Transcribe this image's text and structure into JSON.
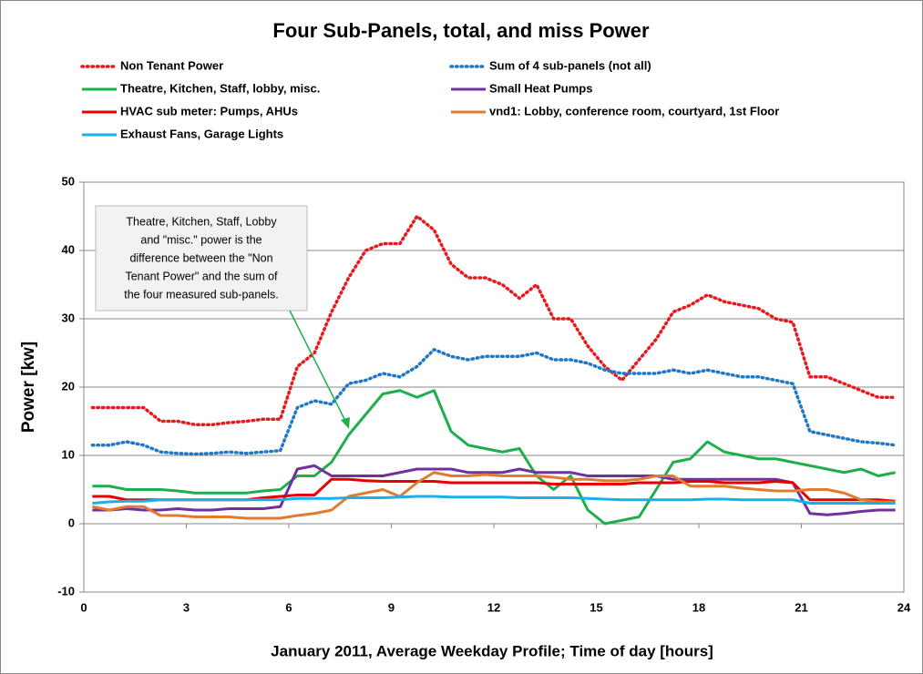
{
  "chart_data": {
    "type": "line",
    "title": "Four Sub-Panels, total, and miss Power",
    "xlabel": "January 2011, Average Weekday Profile;  Time of day [hours]",
    "ylabel": "Power [kw]",
    "annotation": [
      "Theatre, Kitchen, Staff, Lobby",
      "and \"misc.\" power is the",
      "difference between the \"Non",
      "Tenant Power\" and the sum of",
      "the four measured sub-panels."
    ],
    "xlim": [
      0,
      24
    ],
    "xticks": [
      0,
      3,
      6,
      9,
      12,
      15,
      18,
      21,
      24
    ],
    "ylim": [
      -10,
      50
    ],
    "yticks": [
      -10,
      0,
      10,
      20,
      30,
      40,
      50
    ],
    "grid": true,
    "x": [
      0.25,
      0.75,
      1.25,
      1.75,
      2.25,
      2.75,
      3.25,
      3.75,
      4.25,
      4.75,
      5.25,
      5.75,
      6.25,
      6.75,
      7.25,
      7.75,
      8.25,
      8.75,
      9.25,
      9.75,
      10.25,
      10.75,
      11.25,
      11.75,
      12.25,
      12.75,
      13.25,
      13.75,
      14.25,
      14.75,
      15.25,
      15.75,
      16.25,
      16.75,
      17.25,
      17.75,
      18.25,
      18.75,
      19.25,
      19.75,
      20.25,
      20.75,
      21.25,
      21.75,
      22.25,
      22.75,
      23.25,
      23.75
    ],
    "series": [
      {
        "name": "Non Tenant Power",
        "color": "#e8191d",
        "style": "dotted",
        "values": [
          17,
          17,
          17,
          17,
          15,
          15,
          14.5,
          14.5,
          14.8,
          15,
          15.3,
          15.3,
          23,
          25,
          31,
          36,
          40,
          41,
          41,
          45,
          43,
          38,
          36,
          36,
          35,
          33,
          35,
          30,
          30,
          26,
          23,
          21,
          24,
          27,
          31,
          32,
          33.5,
          32.5,
          32,
          31.5,
          30,
          29.5,
          21.5,
          21.5,
          20.5,
          19.5,
          18.5,
          18.5
        ]
      },
      {
        "name": "Sum of 4 sub-panels (not all)",
        "color": "#1f77c8",
        "style": "dotted",
        "values": [
          11.5,
          11.5,
          12,
          11.5,
          10.5,
          10.3,
          10.2,
          10.3,
          10.5,
          10.3,
          10.5,
          10.7,
          17,
          18,
          17.5,
          20.5,
          21,
          22,
          21.5,
          23,
          25.5,
          24.5,
          24,
          24.5,
          24.5,
          24.5,
          25,
          24,
          24,
          23.5,
          22.5,
          22,
          22,
          22,
          22.5,
          22,
          22.5,
          22,
          21.5,
          21.5,
          21,
          20.5,
          13.5,
          13,
          12.5,
          12,
          11.8,
          11.5
        ]
      },
      {
        "name": "Theatre, Kitchen, Staff, lobby, misc.",
        "color": "#1fae4b",
        "style": "solid",
        "values": [
          5.5,
          5.5,
          5,
          5,
          5,
          4.8,
          4.5,
          4.5,
          4.5,
          4.5,
          4.8,
          5,
          7,
          7,
          9,
          13,
          16,
          19,
          19.5,
          18.5,
          19.5,
          13.5,
          11.5,
          11,
          10.5,
          11,
          7,
          5,
          7,
          2,
          0,
          0.5,
          1,
          5,
          9,
          9.5,
          12,
          10.5,
          10,
          9.5,
          9.5,
          9,
          8.5,
          8,
          7.5,
          8,
          7,
          7.5
        ]
      },
      {
        "name": "Small Heat Pumps",
        "color": "#7030a0",
        "style": "solid",
        "values": [
          2,
          2,
          2.2,
          2,
          2,
          2.2,
          2,
          2,
          2.2,
          2.2,
          2.2,
          2.5,
          8,
          8.5,
          7,
          7,
          7,
          7,
          7.5,
          8,
          8,
          8,
          7.5,
          7.5,
          7.5,
          8,
          7.5,
          7.5,
          7.5,
          7,
          7,
          7,
          7,
          7,
          6.5,
          6.5,
          6.5,
          6.5,
          6.5,
          6.5,
          6.5,
          6,
          1.5,
          1.3,
          1.5,
          1.8,
          2,
          2
        ]
      },
      {
        "name": "HVAC sub meter: Pumps, AHUs",
        "color": "#e60000",
        "style": "solid",
        "values": [
          4,
          4,
          3.5,
          3.5,
          3.5,
          3.5,
          3.5,
          3.5,
          3.5,
          3.5,
          3.8,
          4,
          4.2,
          4.2,
          6.5,
          6.5,
          6.3,
          6.2,
          6.2,
          6.2,
          6.2,
          6,
          6,
          6,
          6,
          6,
          6,
          5.8,
          5.8,
          5.8,
          5.8,
          5.8,
          6,
          6,
          6,
          6.2,
          6.2,
          6,
          6,
          6,
          6.2,
          6,
          3.5,
          3.5,
          3.5,
          3.5,
          3.5,
          3.3
        ]
      },
      {
        "name": "vnd1: Lobby, conference room,  courtyard, 1st Floor",
        "color": "#e07b30",
        "style": "solid",
        "values": [
          2.5,
          2,
          2.5,
          2.5,
          1.2,
          1.2,
          1,
          1,
          1,
          0.8,
          0.8,
          0.8,
          1.2,
          1.5,
          2,
          4,
          4.5,
          5,
          4,
          6,
          7.5,
          7,
          7,
          7.2,
          7,
          7,
          7,
          6.8,
          6.5,
          6.5,
          6.3,
          6.3,
          6.5,
          7,
          7,
          5.5,
          5.5,
          5.5,
          5.2,
          5,
          4.8,
          4.8,
          5,
          5,
          4.5,
          3.5,
          3.2,
          3.2
        ]
      },
      {
        "name": "Exhaust Fans, Garage Lights",
        "color": "#1ab0e8",
        "style": "solid",
        "values": [
          3,
          3.2,
          3.3,
          3.3,
          3.5,
          3.5,
          3.5,
          3.5,
          3.5,
          3.5,
          3.5,
          3.5,
          3.7,
          3.7,
          3.7,
          3.8,
          3.8,
          3.8,
          3.9,
          4,
          4,
          3.9,
          3.9,
          3.9,
          3.9,
          3.8,
          3.8,
          3.8,
          3.8,
          3.7,
          3.6,
          3.5,
          3.5,
          3.5,
          3.5,
          3.5,
          3.6,
          3.6,
          3.5,
          3.5,
          3.5,
          3.5,
          3,
          3,
          3,
          3,
          3,
          3
        ]
      }
    ]
  }
}
